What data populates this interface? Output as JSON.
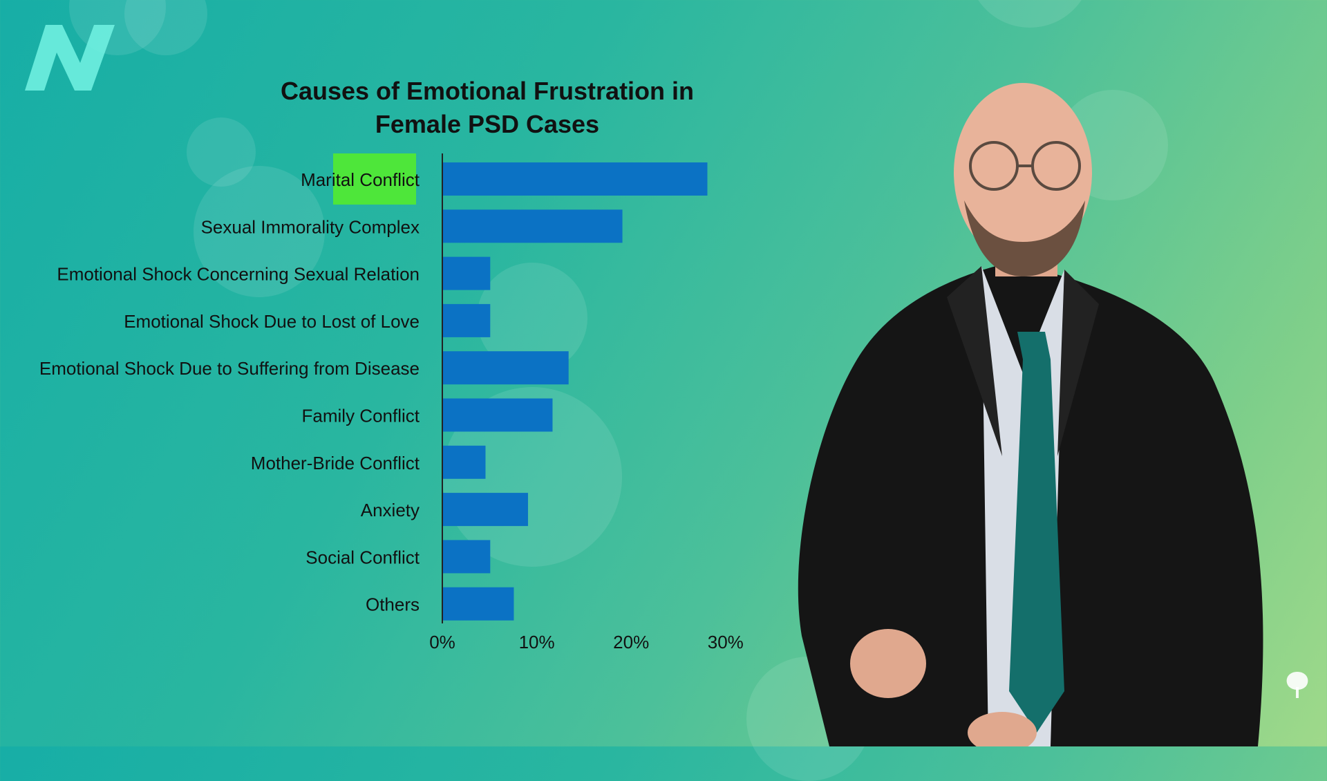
{
  "chart_data": {
    "type": "bar",
    "orientation": "horizontal",
    "title": "Causes of Emotional Frustration in\nFemale PSD Cases",
    "categories": [
      "Marital Conflict",
      "Sexual Immorality Complex",
      "Emotional Shock Concerning Sexual Relation",
      "Emotional Shock Due to Lost of Love",
      "Emotional Shock Due to Suffering from Disease",
      "Family Conflict",
      "Mother-Bride Conflict",
      "Anxiety",
      "Social Conflict",
      "Others"
    ],
    "values": [
      28,
      19,
      5,
      5,
      13.3,
      11.6,
      4.5,
      9,
      5,
      7.5
    ],
    "xlim": [
      0,
      30
    ],
    "x_ticks": [
      "0%",
      "10%",
      "20%",
      "30%"
    ],
    "bar_color": "#0b72c4",
    "highlight": {
      "category": "Marital Conflict",
      "color": "#4ee63a"
    },
    "grid": false
  },
  "icons": {
    "logo": "nutritionfacts-logo",
    "corner": "leaf-icon"
  }
}
